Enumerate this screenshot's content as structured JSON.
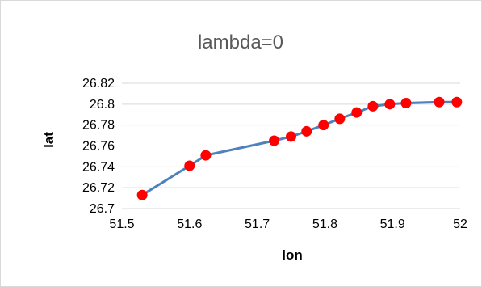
{
  "chart_data": {
    "type": "line",
    "title": "lambda=0",
    "xlabel": "lon",
    "ylabel": "lat",
    "xlim": [
      51.5,
      52
    ],
    "ylim": [
      26.7,
      26.82
    ],
    "xticks": [
      "51.5",
      "51.6",
      "51.7",
      "51.8",
      "51.9",
      "52"
    ],
    "yticks": [
      "26.7",
      "26.72",
      "26.74",
      "26.76",
      "26.78",
      "26.8",
      "26.82"
    ],
    "grid": "horizontal",
    "legend": "none",
    "line_color": "#4f81bd",
    "marker_color": "#ff0000",
    "series": [
      {
        "x": [
          51.53,
          51.6,
          51.624,
          51.725,
          51.75,
          51.773,
          51.798,
          51.822,
          51.847,
          51.871,
          51.896,
          51.92,
          51.969,
          51.995
        ],
        "y": [
          26.713,
          26.741,
          26.751,
          26.765,
          26.769,
          26.774,
          26.78,
          26.786,
          26.792,
          26.798,
          26.8,
          26.801,
          26.802,
          26.802
        ]
      }
    ]
  }
}
